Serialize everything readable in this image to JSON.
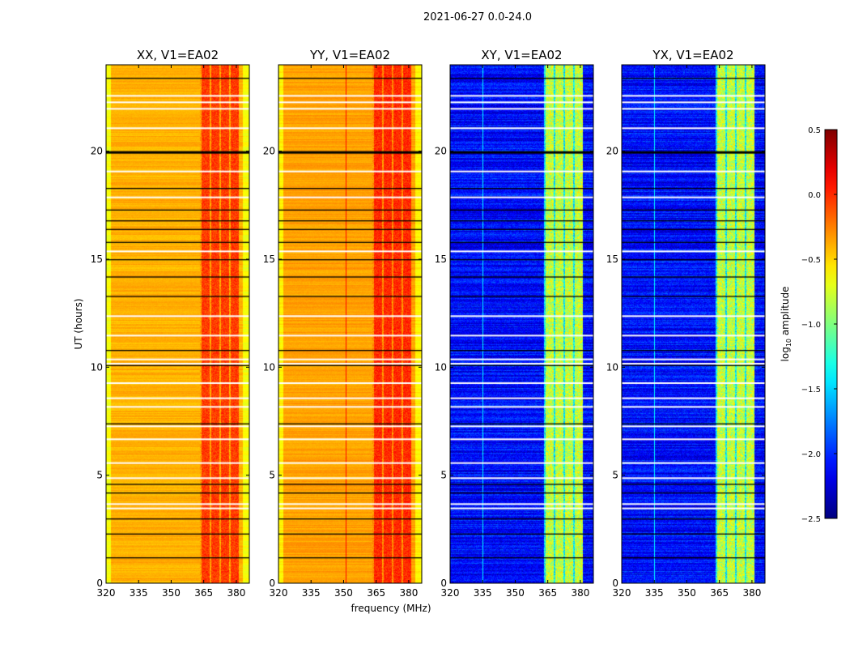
{
  "chart_data": {
    "type": "heatmap",
    "title": "2021-06-27 0.0-24.0",
    "xlabel": "frequency (MHz)",
    "ylabel": "UT (hours)",
    "xlim": [
      320,
      386
    ],
    "ylim": [
      0,
      24
    ],
    "xticks": [
      "320",
      "335",
      "350",
      "365",
      "380"
    ],
    "yticks": [
      "0",
      "5",
      "10",
      "15",
      "20"
    ],
    "panels": [
      {
        "title": "XX, V1=EA02",
        "background_log_amp": -0.4,
        "band_log_amp": -0.05
      },
      {
        "title": "YY, V1=EA02",
        "background_log_amp": -0.35,
        "band_log_amp": 0.0
      },
      {
        "title": "XY, V1=EA02",
        "background_log_amp": -2.1,
        "band_log_amp": -0.8
      },
      {
        "title": "YX, V1=EA02",
        "background_log_amp": -2.1,
        "band_log_amp": -0.8
      }
    ],
    "band_mhz": [
      363,
      381
    ],
    "flagged_hours_black": [
      23.4,
      20.0,
      18.3,
      17.3,
      16.8,
      16.4,
      15.8,
      15.0,
      14.2,
      13.3,
      10.8,
      10.1,
      7.4,
      4.6,
      4.2,
      3.0,
      2.3,
      1.2
    ],
    "gap_hours_white": [
      22.6,
      22.3,
      22.0,
      21.1,
      19.1,
      17.9,
      15.4,
      12.4,
      11.5,
      10.4,
      10.2,
      9.3,
      8.6,
      8.2,
      7.3,
      6.7,
      5.6,
      4.9,
      3.7,
      3.5
    ],
    "colorbar": {
      "label": "log10 amplitude",
      "label_main": "log",
      "label_sub": "10",
      "label_rest": " amplitude",
      "range": [
        -2.5,
        0.5
      ],
      "ticks": [
        "0.5",
        "0.0",
        "−0.5",
        "−1.0",
        "−1.5",
        "−2.0",
        "−2.5"
      ],
      "colormap": "jet"
    }
  }
}
